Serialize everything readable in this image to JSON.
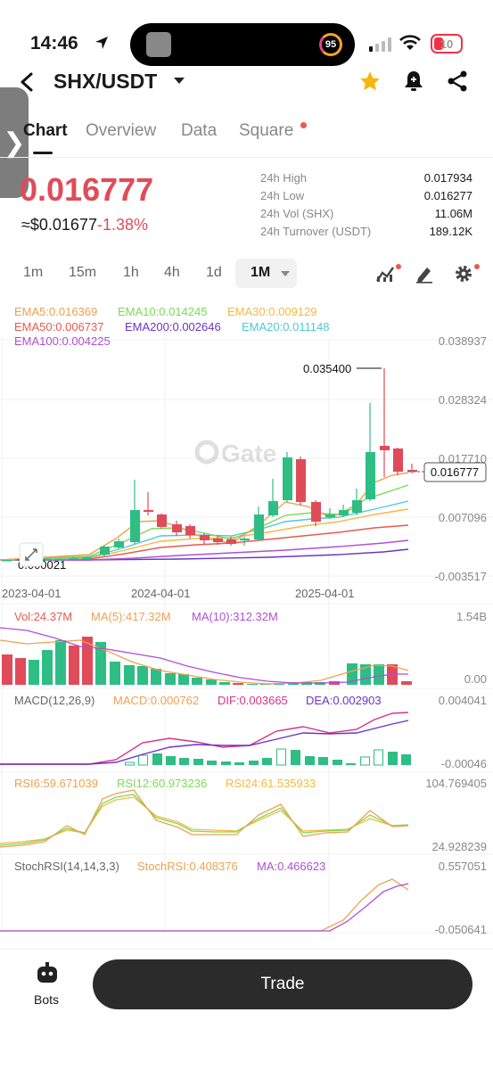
{
  "status_bar": {
    "time": "14:46",
    "activity_badge": "95",
    "battery": "10"
  },
  "header": {
    "pair": "SHX/USDT"
  },
  "tabs": [
    {
      "label": "Chart",
      "active": true
    },
    {
      "label": "Overview",
      "active": false
    },
    {
      "label": "Data",
      "active": false
    },
    {
      "label": "Square",
      "active": false,
      "has_dot": true
    }
  ],
  "price": {
    "last": "0.016777",
    "usd": "≈$0.01677",
    "change": "-1.38%"
  },
  "stats": [
    {
      "label": "24h High",
      "value": "0.017934"
    },
    {
      "label": "24h Low",
      "value": "0.016277"
    },
    {
      "label": "24h Vol (SHX)",
      "value": "11.06M"
    },
    {
      "label": "24h Turnover (USDT)",
      "value": "189.12K"
    }
  ],
  "intervals": [
    "1m",
    "15m",
    "1h",
    "4h",
    "1d"
  ],
  "active_interval": "1M",
  "colors": {
    "up": "#2ebd85",
    "down": "#e04b5a",
    "ema5": "#f0a050",
    "ema10": "#7ed957",
    "ema30": "#f5b942",
    "ema50": "#e85a4f",
    "ema200": "#6a35c9",
    "ema20": "#4fc9d6",
    "ema100": "#b04fd6"
  },
  "main_chart": {
    "ema_labels": [
      {
        "text": "EMA5:0.016369",
        "color": "#f0a050"
      },
      {
        "text": "EMA10:0.014245",
        "color": "#7ed957"
      },
      {
        "text": "EMA30:0.009129",
        "color": "#f5b942"
      },
      {
        "text": "EMA50:0.006737",
        "color": "#e85a4f"
      },
      {
        "text": "EMA200:0.002646",
        "color": "#6a35c9"
      },
      {
        "text": "EMA20:0.011148",
        "color": "#4fc9d6"
      },
      {
        "text": "EMA100:0.004225",
        "color": "#b04fd6"
      }
    ],
    "y_ticks": [
      "0.038937",
      "0.028324",
      "0.017710",
      "0.007096",
      "-0.003517"
    ],
    "x_ticks": [
      "2023-04-01",
      "2024-04-01",
      "2025-04-01"
    ],
    "high_marker": "0.035400",
    "low_marker": "0.000021",
    "current_price_label": "0.016777",
    "watermark": "Gate"
  },
  "volume": {
    "labels": [
      {
        "text": "Vol:24.37M",
        "color": "#e85a4f"
      },
      {
        "text": "MA(5):417.32M",
        "color": "#f0a050"
      },
      {
        "text": "MA(10):312.32M",
        "color": "#b04fd6"
      }
    ],
    "y_ticks": [
      "1.54B",
      "0.00"
    ]
  },
  "macd": {
    "labels": [
      {
        "text": "MACD(12,26,9)",
        "color": "#666666"
      },
      {
        "text": "MACD:0.000762",
        "color": "#f0a050"
      },
      {
        "text": "DIF:0.003665",
        "color": "#d6338a"
      },
      {
        "text": "DEA:0.002903",
        "color": "#6a35c9"
      }
    ],
    "y_ticks": [
      "0.004041",
      "-0.00046"
    ]
  },
  "rsi": {
    "labels": [
      {
        "text": "RSI6:59.671039",
        "color": "#f0a050"
      },
      {
        "text": "RSI12:60.973236",
        "color": "#7ed957"
      },
      {
        "text": "RSI24:61.535933",
        "color": "#f5b942"
      }
    ],
    "y_ticks": [
      "104.769405",
      "24.928239"
    ]
  },
  "stoch_rsi": {
    "labels": [
      {
        "text": "StochRSI(14,14,3,3)",
        "color": "#666666"
      },
      {
        "text": "StochRSI:0.408376",
        "color": "#f0a050"
      },
      {
        "text": "MA:0.466623",
        "color": "#b04fd6"
      }
    ],
    "y_ticks": [
      "0.557051",
      "-0.050641"
    ]
  },
  "bottom_bar": {
    "bots_label": "Bots",
    "trade_label": "Trade"
  }
}
